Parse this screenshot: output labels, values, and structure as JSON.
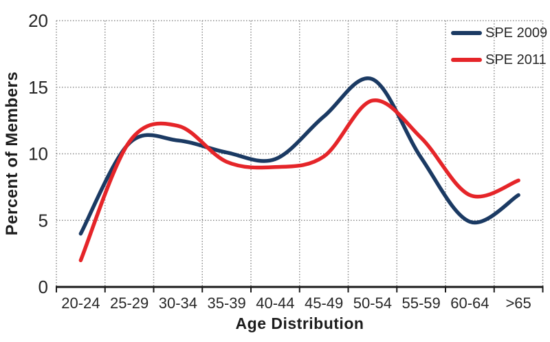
{
  "chart_data": {
    "type": "line",
    "line_style": "smooth",
    "title": "",
    "xlabel": "Age Distribution",
    "ylabel": "Percent of Members",
    "categories": [
      "20-24",
      "25-29",
      "30-34",
      "35-39",
      "40-44",
      "45-49",
      "50-54",
      "55-59",
      "60-64",
      ">65"
    ],
    "series": [
      {
        "name": "SPE 2009",
        "color": "#1b3a63",
        "values": [
          4.0,
          10.8,
          11.0,
          10.1,
          9.6,
          12.8,
          15.6,
          9.7,
          4.9,
          6.9
        ]
      },
      {
        "name": "SPE 2011",
        "color": "#e52529",
        "values": [
          2.0,
          10.9,
          12.1,
          9.4,
          9.0,
          9.8,
          14.0,
          11.2,
          6.9,
          8.0
        ]
      }
    ],
    "ylim": [
      0,
      20
    ],
    "yticks": [
      0,
      5,
      10,
      15,
      20
    ],
    "grid": true,
    "gridline_color": "#8c8c8c",
    "axis_color": "#1a1a1a",
    "tick_label_color": "#262626",
    "legend_position": "top-right"
  }
}
